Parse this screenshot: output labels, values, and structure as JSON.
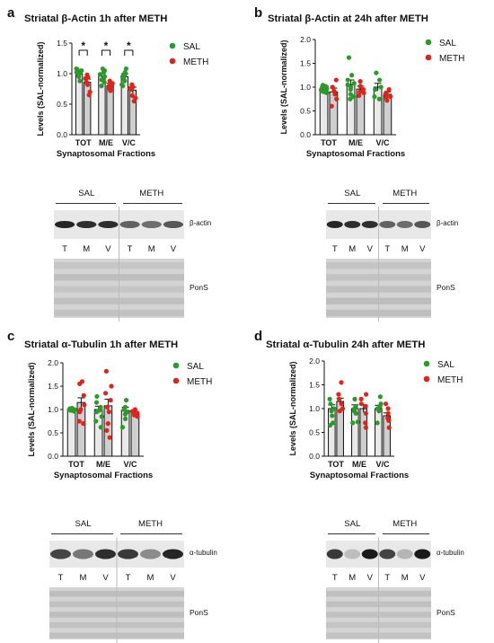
{
  "colors": {
    "sal": "#2a9b2a",
    "meth": "#e2231a",
    "bar": "#cfcfcf",
    "bar2": "#e9e9e9"
  },
  "panels": [
    {
      "letter": "a",
      "title": "Striatal β-Actin 1h after METH",
      "blot_protein": "β-actin",
      "ponceau": "PonS",
      "blot_style": "beta"
    },
    {
      "letter": "b",
      "title": "Striatal β-Actin at 24h after METH",
      "blot_protein": "β-actin",
      "ponceau": "PonS",
      "blot_style": "beta"
    },
    {
      "letter": "c",
      "title": "Striatal α-Tubulin 1h after METH",
      "blot_protein": "α-tubulin",
      "ponceau": "PonS",
      "blot_style": "tubulin"
    },
    {
      "letter": "d",
      "title": "Striatal α-Tubulin 24h after METH",
      "blot_protein": "α-tubulin",
      "ponceau": "PonS",
      "blot_style": "tubulin_d"
    }
  ],
  "blot_groups": {
    "sal": "SAL",
    "meth": "METH"
  },
  "lane_labels": [
    "T",
    "M",
    "V",
    "T",
    "M",
    "V"
  ],
  "chart_data": [
    {
      "type": "bar",
      "title": "Striatal β-Actin 1h after METH",
      "xlabel": "Synaptosomal Fractions",
      "ylabel": "Levels (SAL-normalized)",
      "categories": [
        "TOT",
        "M/E",
        "V/C"
      ],
      "ylim": [
        0,
        1.5
      ],
      "yticks": [
        "0.0",
        "0.5",
        "1.0",
        "1.5"
      ],
      "legend": [
        "SAL",
        "METH"
      ],
      "legend_position": "top-right",
      "significance": [
        "*",
        "*",
        "*"
      ],
      "series": [
        {
          "name": "SAL",
          "values": [
            1.0,
            0.96,
            0.95
          ],
          "errors": [
            0.04,
            0.04,
            0.05
          ],
          "points": [
            [
              1.08,
              1.05,
              1.02,
              1.0,
              0.97,
              0.95,
              0.88,
              1.07,
              0.99
            ],
            [
              1.05,
              1.02,
              0.99,
              0.95,
              0.93,
              0.9,
              0.86,
              0.8,
              1.08
            ],
            [
              1.08,
              1.02,
              1.0,
              0.97,
              0.95,
              0.92,
              0.88,
              0.82,
              0.8
            ]
          ]
        },
        {
          "name": "METH",
          "values": [
            0.86,
            0.8,
            0.73
          ],
          "errors": [
            0.05,
            0.04,
            0.05
          ],
          "points": [
            [
              0.98,
              0.94,
              0.92,
              0.86,
              0.82,
              0.7,
              0.65
            ],
            [
              0.88,
              0.84,
              0.82,
              0.8,
              0.76,
              0.74,
              0.72
            ],
            [
              0.82,
              0.78,
              0.76,
              0.74,
              0.64,
              0.6,
              0.55
            ]
          ]
        }
      ]
    },
    {
      "type": "bar",
      "title": "Striatal β-Actin at 24h after METH",
      "xlabel": "Synaptosomal Fractions",
      "ylabel": "Levels (SAL-normalized)",
      "categories": [
        "TOT",
        "M/E",
        "V/C"
      ],
      "ylim": [
        0,
        2.0
      ],
      "yticks": [
        "0.0",
        "0.5",
        "1.0",
        "1.5",
        "2.0"
      ],
      "legend": [
        "SAL",
        "METH"
      ],
      "legend_position": "top-right",
      "series": [
        {
          "name": "SAL",
          "values": [
            0.98,
            1.05,
            1.0
          ],
          "errors": [
            0.04,
            0.1,
            0.08
          ],
          "points": [
            [
              1.0,
              0.96,
              0.94,
              0.92,
              0.9,
              1.0,
              1.04,
              0.98,
              1.02,
              0.88
            ],
            [
              1.62,
              1.25,
              1.15,
              1.05,
              1.0,
              0.95,
              0.85,
              0.8,
              0.75,
              1.08
            ],
            [
              1.3,
              1.15,
              1.0,
              0.95,
              0.8,
              0.75
            ]
          ]
        },
        {
          "name": "METH",
          "values": [
            0.9,
            0.96,
            0.85
          ],
          "errors": [
            0.08,
            0.06,
            0.05
          ],
          "points": [
            [
              1.15,
              1.0,
              0.92,
              0.85,
              0.75,
              0.6
            ],
            [
              1.12,
              1.02,
              0.95,
              0.9,
              0.88,
              0.82
            ],
            [
              0.95,
              0.88,
              0.85,
              0.8,
              0.78,
              0.72
            ]
          ]
        }
      ]
    },
    {
      "type": "bar",
      "title": "Striatal α-Tubulin 1h after METH",
      "xlabel": "Synaptosomal Fractions",
      "ylabel": "Levels (SAL-normalized)",
      "categories": [
        "TOT",
        "M/E",
        "V/C"
      ],
      "ylim": [
        0,
        2.0
      ],
      "yticks": [
        "0.0",
        "0.5",
        "1.0",
        "1.5",
        "2.0"
      ],
      "legend": [
        "SAL",
        "METH"
      ],
      "legend_position": "top-right",
      "series": [
        {
          "name": "SAL",
          "values": [
            1.0,
            1.0,
            0.98
          ],
          "errors": [
            0.02,
            0.07,
            0.07
          ],
          "points": [
            [
              1.03,
              1.0,
              0.99,
              0.98,
              0.97,
              1.01,
              1.02,
              0.96,
              1.0
            ],
            [
              1.28,
              1.15,
              1.05,
              1.0,
              0.98,
              0.95,
              0.85,
              0.75,
              0.62
            ],
            [
              1.2,
              1.05,
              1.0,
              0.95,
              0.9,
              0.8,
              0.62
            ]
          ]
        },
        {
          "name": "METH",
          "values": [
            1.15,
            1.08,
            0.92
          ],
          "errors": [
            0.1,
            0.14,
            0.04
          ],
          "points": [
            [
              1.6,
              1.55,
              1.3,
              1.1,
              1.0,
              0.95,
              0.75,
              0.7
            ],
            [
              1.82,
              1.5,
              1.35,
              1.2,
              1.05,
              0.95,
              0.7,
              0.55,
              0.4
            ],
            [
              1.0,
              0.96,
              0.95,
              0.92,
              0.88,
              0.85
            ]
          ]
        }
      ]
    },
    {
      "type": "bar",
      "title": "Striatal α-Tubulin 24h after METH",
      "xlabel": "Synaptosomal Fractions",
      "ylabel": "Levels (SAL-normalized)",
      "categories": [
        "TOT",
        "M/E",
        "V/C"
      ],
      "ylim": [
        0,
        2.0
      ],
      "yticks": [
        "0.0",
        "0.5",
        "1.0",
        "1.5",
        "2.0"
      ],
      "legend": [
        "SAL",
        "METH"
      ],
      "legend_position": "top-right",
      "series": [
        {
          "name": "SAL",
          "values": [
            1.0,
            1.0,
            1.0
          ],
          "errors": [
            0.08,
            0.08,
            0.07
          ],
          "points": [
            [
              1.2,
              1.1,
              1.0,
              0.95,
              0.85,
              0.7,
              0.65
            ],
            [
              1.2,
              1.05,
              1.0,
              0.95,
              0.9,
              0.72,
              0.7
            ],
            [
              1.25,
              1.1,
              1.05,
              1.0,
              0.95,
              0.7
            ]
          ]
        },
        {
          "name": "METH",
          "values": [
            1.15,
            1.0,
            0.85
          ],
          "errors": [
            0.07,
            0.08,
            0.06
          ],
          "points": [
            [
              1.55,
              1.3,
              1.2,
              1.1,
              1.0,
              0.95
            ],
            [
              1.3,
              1.2,
              1.1,
              1.05,
              0.9,
              0.7,
              0.6
            ],
            [
              1.1,
              1.0,
              0.9,
              0.8,
              0.75,
              0.6
            ]
          ]
        }
      ]
    }
  ]
}
